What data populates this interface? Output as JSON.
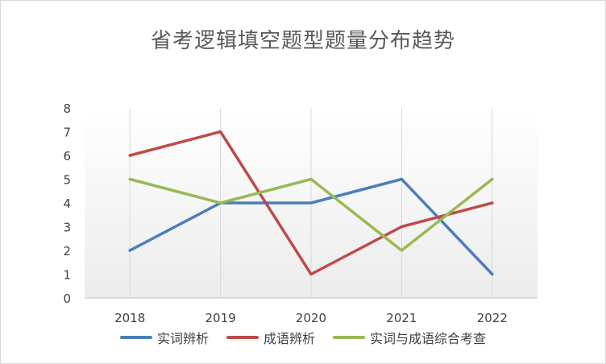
{
  "chart_data": {
    "type": "line",
    "title": "省考逻辑填空题型题量分布趋势",
    "categories": [
      "2018",
      "2019",
      "2020",
      "2021",
      "2022"
    ],
    "ylim": [
      0,
      8
    ],
    "yticks": [
      "0",
      "1",
      "2",
      "3",
      "4",
      "5",
      "6",
      "7",
      "8"
    ],
    "grid": "vertical",
    "legend_position": "bottom",
    "series": [
      {
        "name": "实词辨析",
        "color": "#4a7ebb",
        "values": [
          2,
          4,
          4,
          5,
          1
        ]
      },
      {
        "name": "成语辨析",
        "color": "#be4b48",
        "values": [
          6,
          7,
          1,
          3,
          4
        ]
      },
      {
        "name": "实词与成语综合考查",
        "color": "#98b954",
        "values": [
          5,
          4,
          5,
          2,
          5
        ]
      }
    ]
  }
}
